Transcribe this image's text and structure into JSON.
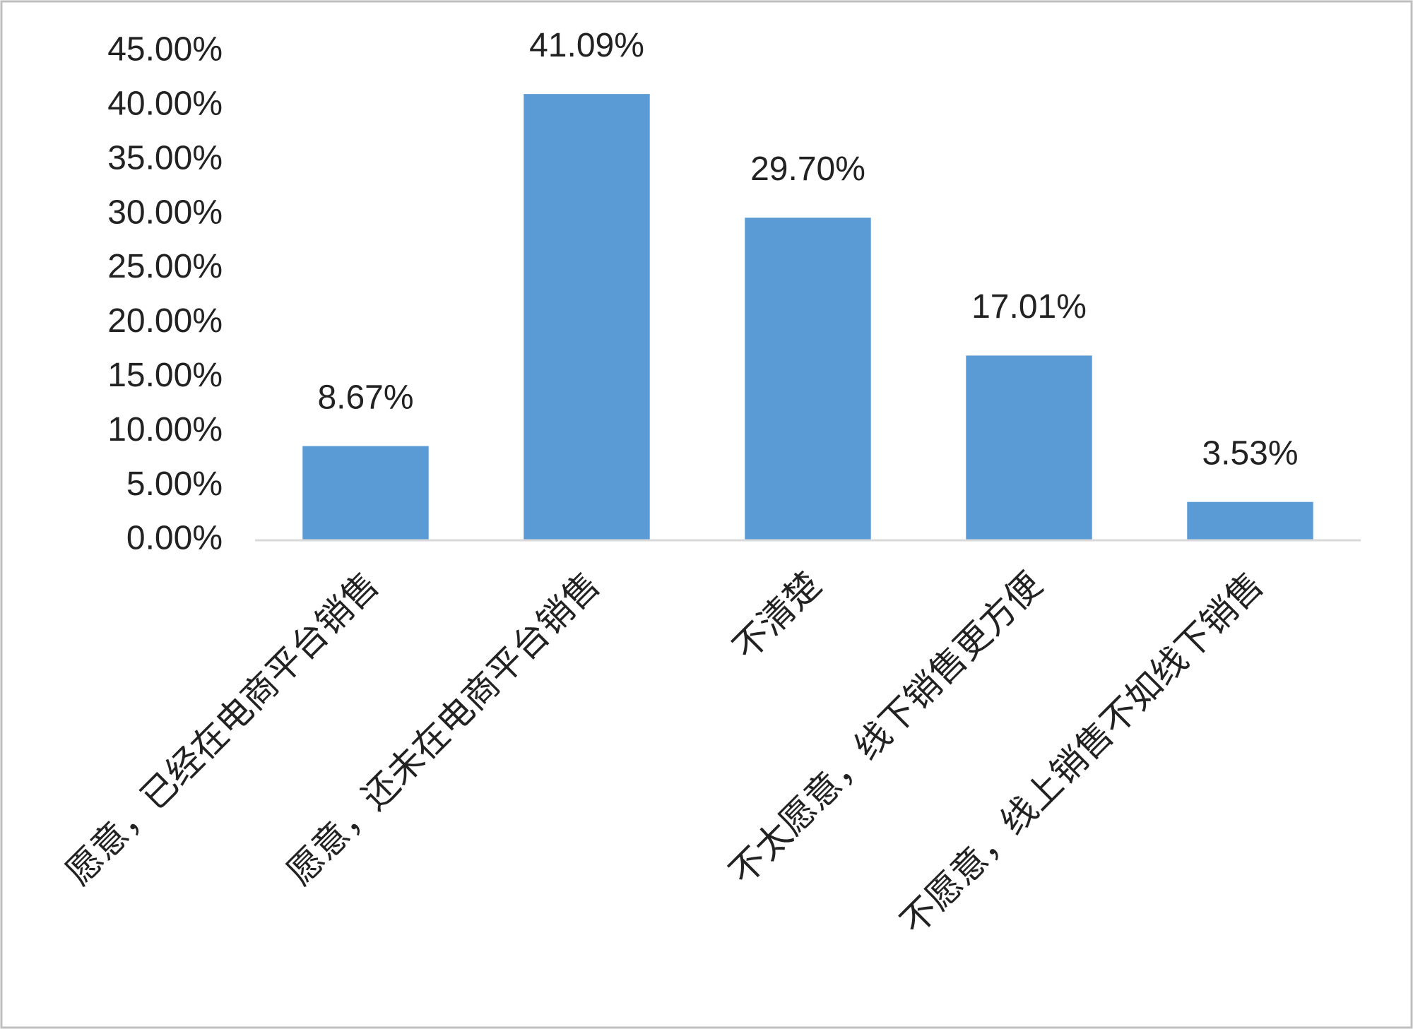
{
  "chart_data": {
    "type": "bar",
    "categories": [
      "愿意，已经在电商平台销售",
      "愿意，还未在电商平台销售",
      "不清楚",
      "不太愿意，线下销售更方便",
      "不愿意，线上销售不如线下销售"
    ],
    "values": [
      8.67,
      41.09,
      29.7,
      17.01,
      3.53
    ],
    "value_labels": [
      "8.67%",
      "41.09%",
      "29.70%",
      "17.01%",
      "3.53%"
    ],
    "color": "#5b9bd5",
    "ylim": [
      0,
      45
    ],
    "yticks": [
      {
        "value": 0,
        "label": "0.00%"
      },
      {
        "value": 5,
        "label": "5.00%"
      },
      {
        "value": 10,
        "label": "10.00%"
      },
      {
        "value": 15,
        "label": "15.00%"
      },
      {
        "value": 20,
        "label": "20.00%"
      },
      {
        "value": 25,
        "label": "25.00%"
      },
      {
        "value": 30,
        "label": "30.00%"
      },
      {
        "value": 35,
        "label": "35.00%"
      },
      {
        "value": 40,
        "label": "40.00%"
      },
      {
        "value": 45,
        "label": "45.00%"
      }
    ],
    "grid": false
  }
}
